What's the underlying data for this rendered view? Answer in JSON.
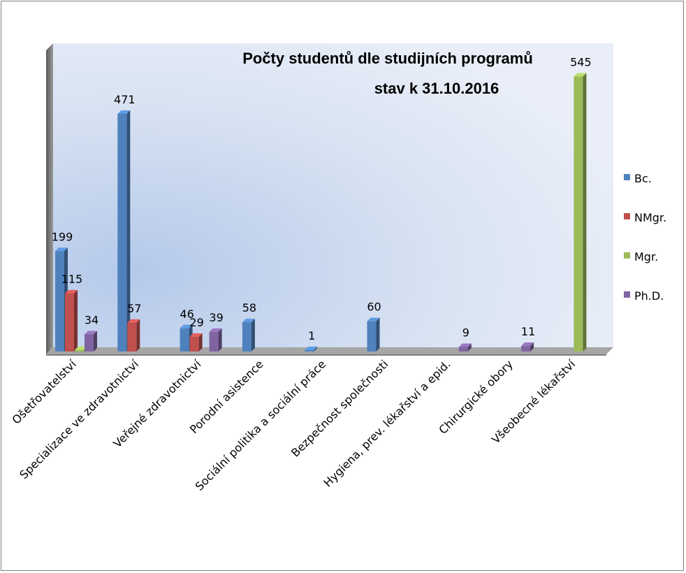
{
  "chart_data": {
    "type": "bar",
    "title": "Počty studentů dle studijních programů",
    "subtitle": "stav k 31.10.2016",
    "xlabel": "",
    "ylabel": "",
    "ylim": [
      0,
      600
    ],
    "grid": false,
    "legend_position": "right",
    "categories": [
      "Ošetřovatelství",
      "Specializace ve zdravotnictví",
      "Veřejné zdravotnictví",
      "Porodní asistence",
      "Sociální politika a sociální práce",
      "Bezpečnost společnosti",
      "Hygiena, prev. lékařství a epid.",
      "Chirurgické obory",
      "Všeobecné lékařství"
    ],
    "series": [
      {
        "name": "Bc.",
        "color": "#4f81bd",
        "values": [
          199,
          471,
          46,
          58,
          1,
          60,
          null,
          null,
          null
        ]
      },
      {
        "name": "NMgr.",
        "color": "#c0504d",
        "values": [
          115,
          57,
          29,
          null,
          null,
          null,
          null,
          null,
          null
        ]
      },
      {
        "name": "Mgr.",
        "color": "#9bbb59",
        "values": [
          0,
          null,
          null,
          null,
          null,
          null,
          null,
          null,
          545
        ]
      },
      {
        "name": "Ph.D.",
        "color": "#8064a2",
        "values": [
          34,
          null,
          39,
          null,
          null,
          null,
          9,
          11,
          null
        ]
      }
    ]
  }
}
